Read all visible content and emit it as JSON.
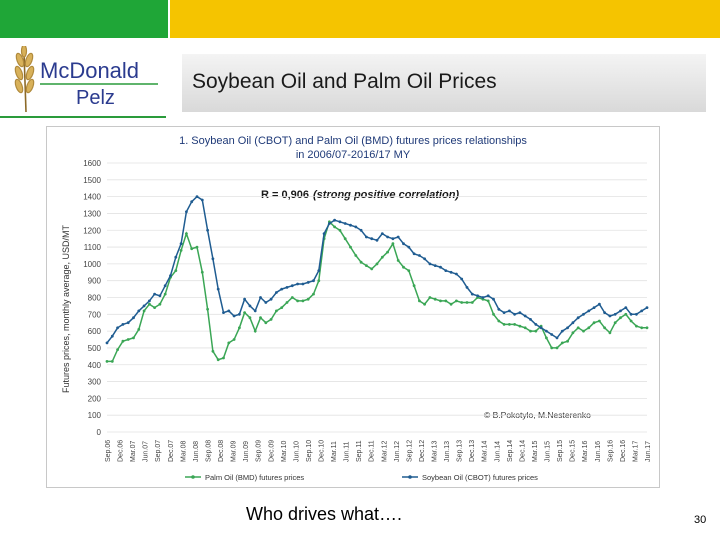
{
  "header": {
    "green_color": "#1fa637",
    "yellow_color": "#f5c400"
  },
  "logo": {
    "line1": "McDonald",
    "line2": "Pelz",
    "icon": "wheat-icon",
    "accent": "#2a9b3b",
    "text_color": "#2b3b8f"
  },
  "slide": {
    "title": "Soybean Oil and Palm Oil Prices",
    "caption": "Who drives what….",
    "page_number": "30"
  },
  "chart_data": {
    "type": "line",
    "title": "1. Soybean Oil (CBOT) and Palm Oil (BMD) futures prices relationships",
    "subtitle": "in 2006/07-2016/17 MY",
    "annotation": "R = 0,906",
    "annotation_note": "(strong positive correlation)",
    "credit": "© B.Pokotylo, M.Nesterenko",
    "ylabel": "Futures prices, monthly average, USD/MT",
    "ylim": [
      0,
      1600
    ],
    "yticks": [
      0,
      100,
      200,
      300,
      400,
      500,
      600,
      700,
      800,
      900,
      1000,
      1100,
      1200,
      1300,
      1400,
      1500,
      1600
    ],
    "legend_position": "bottom",
    "x_tick_labels": [
      "Sep.06",
      "Dec.06",
      "Mar.07",
      "Jun.07",
      "Sep.07",
      "Dec.07",
      "Mar.08",
      "Jun.08",
      "Sep.08",
      "Dec.08",
      "Mar.09",
      "Jun.09",
      "Sep.09",
      "Dec.09",
      "Mar.10",
      "Jun.10",
      "Sep.10",
      "Dec.10",
      "Mar.11",
      "Jun.11",
      "Sep.11",
      "Dec.11",
      "Mar.12",
      "Jun.12",
      "Sep.12",
      "Dec.12",
      "Mar.13",
      "Jun.13",
      "Sep.13",
      "Dec.13",
      "Mar.14",
      "Jun.14",
      "Sep.14",
      "Dec.14",
      "Mar.15",
      "Jun.15",
      "Sep.15",
      "Dec.15",
      "Mar.16",
      "Jun.16",
      "Sep.16",
      "Dec.16",
      "Mar.17",
      "Jun.17"
    ],
    "series": [
      {
        "name": "Palm Oil (BMD) futures prices",
        "color": "#3aa655",
        "values": [
          420,
          420,
          490,
          540,
          550,
          560,
          610,
          720,
          760,
          740,
          760,
          820,
          920,
          960,
          1080,
          1180,
          1090,
          1100,
          950,
          730,
          480,
          430,
          440,
          530,
          550,
          620,
          710,
          680,
          600,
          680,
          650,
          670,
          720,
          740,
          770,
          800,
          780,
          780,
          790,
          820,
          900,
          1150,
          1250,
          1220,
          1200,
          1150,
          1100,
          1050,
          1010,
          990,
          970,
          1000,
          1040,
          1070,
          1120,
          1020,
          980,
          960,
          870,
          780,
          760,
          800,
          790,
          780,
          780,
          760,
          780,
          770,
          770,
          770,
          800,
          790,
          780,
          700,
          660,
          640,
          640,
          640,
          630,
          620,
          600,
          600,
          630,
          560,
          500,
          500,
          530,
          540,
          590,
          620,
          600,
          620,
          650,
          660,
          620,
          590,
          650,
          680,
          700,
          660,
          630,
          620,
          620
        ]
      },
      {
        "name": "Soybean Oil (CBOT) futures prices",
        "color": "#1f5c91",
        "values": [
          530,
          570,
          620,
          640,
          650,
          680,
          720,
          750,
          780,
          820,
          810,
          870,
          930,
          1040,
          1120,
          1310,
          1370,
          1400,
          1380,
          1200,
          1030,
          850,
          710,
          720,
          690,
          700,
          790,
          750,
          720,
          800,
          770,
          790,
          830,
          850,
          860,
          870,
          880,
          880,
          890,
          900,
          960,
          1180,
          1240,
          1260,
          1250,
          1240,
          1230,
          1220,
          1200,
          1160,
          1150,
          1140,
          1180,
          1160,
          1150,
          1160,
          1120,
          1100,
          1060,
          1050,
          1030,
          1000,
          990,
          980,
          960,
          950,
          940,
          910,
          860,
          820,
          810,
          800,
          810,
          790,
          730,
          710,
          720,
          700,
          710,
          690,
          670,
          640,
          620,
          600,
          580,
          560,
          600,
          620,
          650,
          680,
          700,
          720,
          740,
          760,
          710,
          690,
          700,
          720,
          740,
          700,
          700,
          720,
          740
        ]
      }
    ]
  }
}
